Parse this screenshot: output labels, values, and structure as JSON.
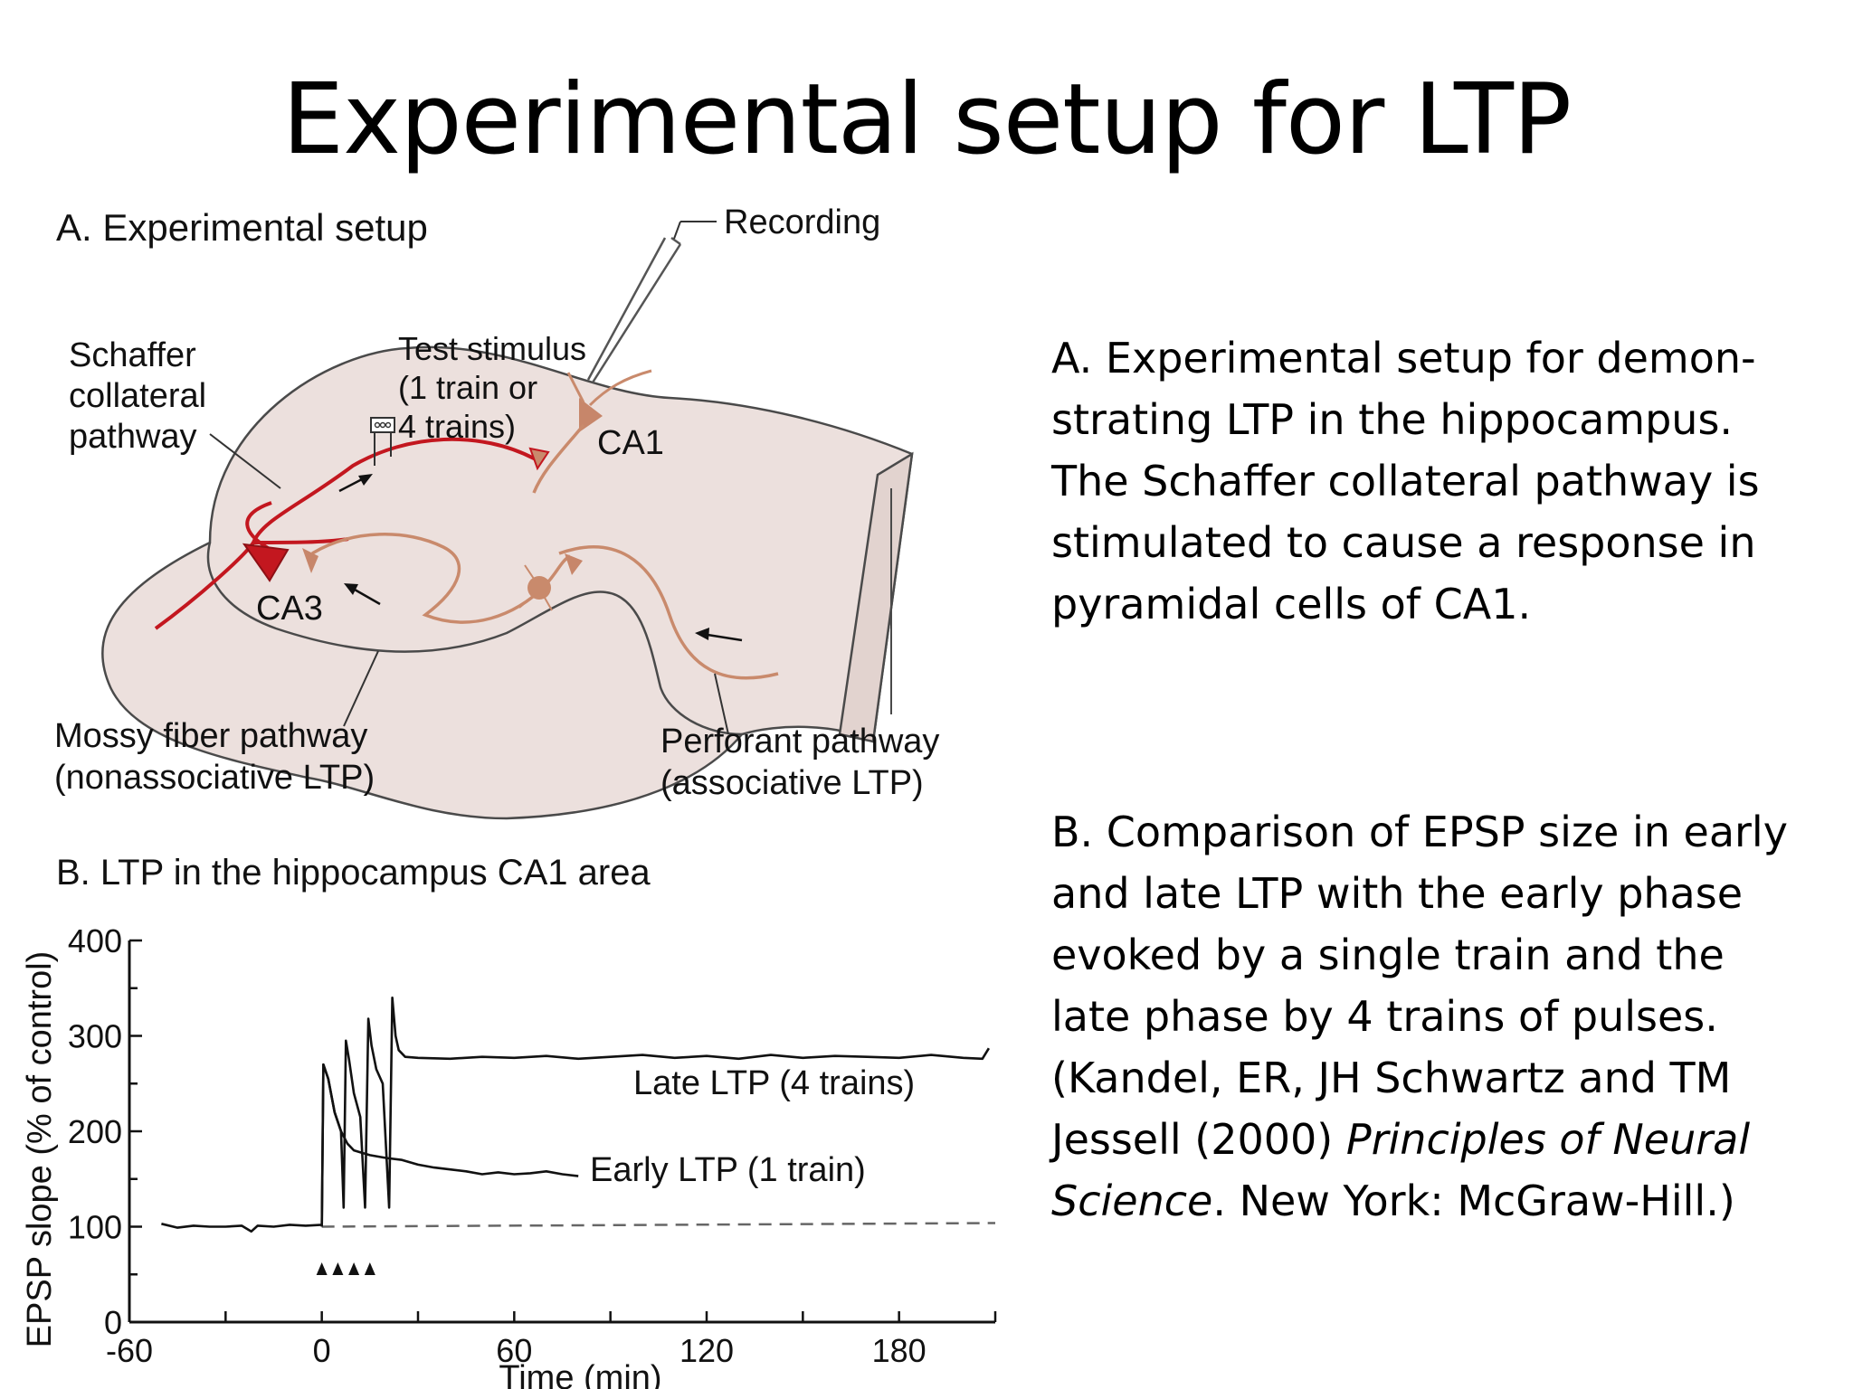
{
  "title": "Experimental setup for LTP",
  "panel_a": {
    "heading": "A. Experimental setup",
    "labels": {
      "recording": "Recording",
      "schaffer": [
        "Schaffer",
        "collateral",
        "pathway"
      ],
      "test_stimulus": [
        "Test stimulus",
        "(1 train or",
        "4 trains)"
      ],
      "ca1": "CA1",
      "ca3": "CA3",
      "mossy": [
        "Mossy fiber pathway",
        "(nonassociative LTP)"
      ],
      "perforant": [
        "Perforant pathway",
        "(associative LTP)"
      ]
    }
  },
  "panel_b": {
    "heading": "B. LTP in the hippocampus CA1 area",
    "curve_labels": {
      "late": "Late LTP (4 trains)",
      "early": "Early LTP (1 train)"
    }
  },
  "chart_data": {
    "type": "line",
    "xlabel": "Time (min)",
    "ylabel": "EPSP slope (% of control)",
    "xlim": [
      -60,
      210
    ],
    "ylim": [
      0,
      400
    ],
    "xticks": [
      -60,
      0,
      60,
      120,
      180
    ],
    "yticks": [
      0,
      100,
      200,
      300,
      400
    ],
    "baseline": 100,
    "stimulus_markers_min": [
      0,
      5,
      10,
      15
    ],
    "series": [
      {
        "name": "Early LTP (1 train)",
        "x": [
          -50,
          -45,
          -40,
          -35,
          -30,
          -25,
          -22,
          -20,
          -15,
          -10,
          -5,
          0,
          0.5,
          2,
          4,
          6,
          8,
          10,
          12,
          15,
          20,
          25,
          30,
          35,
          40,
          45,
          50,
          55,
          60,
          65,
          70,
          75,
          80
        ],
        "y": [
          103,
          99,
          101,
          100,
          100,
          101,
          95,
          101,
          100,
          102,
          101,
          102,
          270,
          255,
          220,
          200,
          187,
          180,
          178,
          175,
          172,
          170,
          165,
          162,
          160,
          158,
          155,
          157,
          155,
          156,
          158,
          155,
          153
        ]
      },
      {
        "name": "Late LTP (4 trains)",
        "x": [
          0,
          0.5,
          2,
          4,
          6,
          6.8,
          7.5,
          8.5,
          10,
          12,
          13.5,
          14.5,
          15.5,
          17,
          19,
          21,
          22,
          23,
          24,
          26,
          30,
          40,
          50,
          60,
          70,
          80,
          90,
          100,
          110,
          120,
          130,
          140,
          150,
          160,
          170,
          180,
          190,
          200,
          206,
          208
        ],
        "y": [
          100,
          270,
          255,
          220,
          200,
          120,
          295,
          275,
          240,
          215,
          120,
          318,
          290,
          265,
          250,
          120,
          340,
          300,
          285,
          278,
          277,
          276,
          278,
          277,
          279,
          276,
          278,
          280,
          277,
          279,
          276,
          280,
          277,
          279,
          278,
          277,
          280,
          277,
          276,
          287
        ]
      }
    ]
  },
  "captions": {
    "a": [
      "A. Experimental setup for demon-",
      "strating LTP in the hippocampus.",
      "The Schaffer collateral pathway is",
      "stimulated to cause a response in",
      "pyramidal cells of CA1."
    ],
    "b_lines": [
      "B. Comparison of EPSP size in early",
      "and late LTP with the early phase",
      "evoked by a single train and the",
      "late phase by 4 trains of pulses.",
      "(Kandel, ER, JH Schwartz and TM"
    ],
    "b_line6_pre": "Jessell (2000) ",
    "b_book_part1": "Principles of Neural",
    "b_book_part2": "Science",
    "b_line7_post": ". New York: McGraw-Hill.)"
  },
  "colors": {
    "schaffer_pathway": "#c3171f",
    "mossy_perforant_pathway": "#c98a6c",
    "neuron": "#c7866a",
    "hippocampus_fill": "#ece0dd",
    "hippocampus_outline": "#4a4a4a"
  }
}
